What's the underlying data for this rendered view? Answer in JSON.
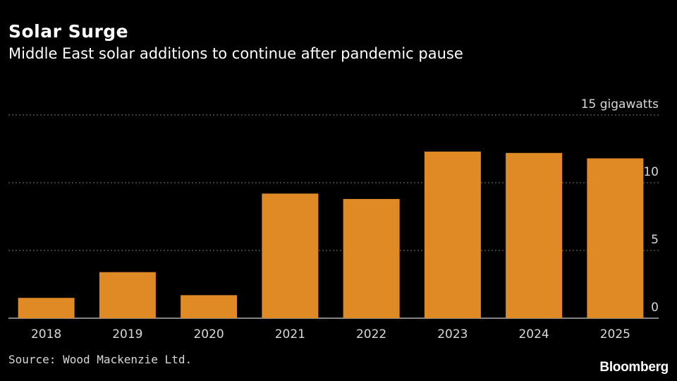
{
  "header": {
    "title": "Solar Surge",
    "subtitle": "Middle East solar additions to continue after pandemic pause"
  },
  "footer": {
    "source": "Source: Wood Mackenzie Ltd.",
    "brand": "Bloomberg"
  },
  "colors": {
    "background": "#000000",
    "bar": "#e08a25",
    "grid": "#7a7a7a",
    "text": "#ffffff",
    "axis_text": "#d8d8d8"
  },
  "chart_data": {
    "type": "bar",
    "categories": [
      "2018",
      "2019",
      "2020",
      "2021",
      "2022",
      "2023",
      "2024",
      "2025"
    ],
    "values": [
      1.5,
      3.4,
      1.7,
      9.2,
      8.8,
      12.3,
      12.2,
      11.8
    ],
    "ylim": [
      0,
      15
    ],
    "yticks": [
      0,
      5,
      10,
      15
    ],
    "ytick_labels": [
      "0",
      "5",
      "10",
      "15 gigawatts"
    ],
    "y_axis_position": "right",
    "grid": "horizontal dotted",
    "title": "Solar Surge",
    "subtitle": "Middle East solar additions to continue after pandemic pause",
    "xlabel": "",
    "ylabel": ""
  }
}
